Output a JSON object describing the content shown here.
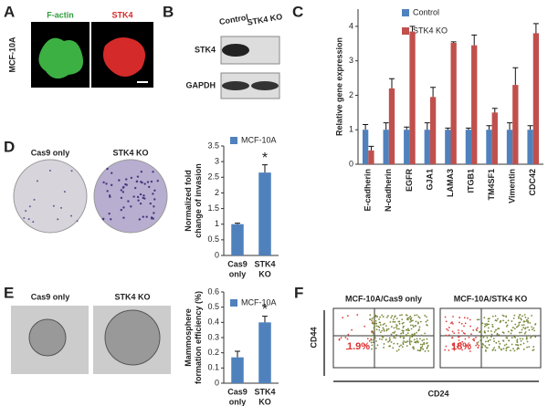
{
  "panels": {
    "letters": [
      "A",
      "B",
      "C",
      "D",
      "E",
      "F"
    ],
    "a": {
      "row_label": "MCF-10A",
      "stain1": "F-actin",
      "stain2": "STK4"
    },
    "b": {
      "col1": "Control",
      "col2": "STK4 KO",
      "row1": "STK4",
      "row2": "GAPDH"
    },
    "d": {
      "img1": "Cas9 only",
      "img2": "STK4 KO"
    },
    "e": {
      "img1": "Cas9 only",
      "img2": "STK4 KO"
    },
    "f": {
      "title1": "MCF-10A/Cas9 only",
      "title2": "MCF-10A/STK4 KO",
      "pct1": "1.9%",
      "pct2": "18%",
      "ylabel": "CD44",
      "xlabel": "CD24"
    }
  },
  "chart_data": [
    {
      "type": "bar",
      "ylabel": [
        "Relative gene expression"
      ],
      "categories": [
        [
          "E-cadherin"
        ],
        [
          "N-cadherin"
        ],
        [
          "EGFR"
        ],
        [
          "GJA1"
        ],
        [
          "LAMA3"
        ],
        [
          "ITGB1"
        ],
        [
          "TM4SF1"
        ],
        [
          "Vimentin"
        ],
        [
          "CDC42"
        ]
      ],
      "series": [
        {
          "name": "Control",
          "color": "#4f81bd",
          "values": [
            1,
            1,
            1,
            1,
            1,
            1,
            1,
            1,
            1
          ],
          "errors": [
            0.15,
            0.2,
            0.08,
            0.2,
            0.05,
            0.05,
            0.12,
            0.2,
            0.12
          ]
        },
        {
          "name": "STK4 KO",
          "color": "#c0504d",
          "values": [
            0.4,
            2.2,
            3.85,
            1.95,
            3.52,
            3.45,
            1.5,
            2.3,
            3.8
          ],
          "errors": [
            0.12,
            0.28,
            0.15,
            0.28,
            0.03,
            0.3,
            0.12,
            0.5,
            0.28
          ]
        }
      ],
      "ylim": [
        0,
        4.5
      ],
      "yticks": [
        0,
        1,
        2,
        3,
        4
      ]
    },
    {
      "type": "bar",
      "ylabel": [
        "Normalized fold",
        "change of invasion"
      ],
      "categories": [
        [
          "Cas9",
          "only"
        ],
        [
          "STK4",
          "KO"
        ]
      ],
      "series": [
        {
          "name": "MCF-10A",
          "color": "#4f81bd",
          "values": [
            1,
            2.65
          ],
          "errors": [
            0.03,
            0.25
          ]
        }
      ],
      "annotation": "*",
      "ylim": [
        0,
        3.5
      ],
      "yticks": [
        0,
        0.5,
        1,
        1.5,
        2,
        2.5,
        3,
        3.5
      ]
    },
    {
      "type": "bar",
      "ylabel": [
        "Mammosphere",
        "formation efficiency (%)"
      ],
      "categories": [
        [
          "Cas9",
          "only"
        ],
        [
          "STK4",
          "KO"
        ]
      ],
      "series": [
        {
          "name": "MCF-10A",
          "color": "#4f81bd",
          "values": [
            0.17,
            0.4
          ],
          "errors": [
            0.04,
            0.04
          ]
        }
      ],
      "annotation": "*",
      "ylim": [
        0,
        0.6
      ],
      "yticks": [
        0,
        0.1,
        0.2,
        0.3,
        0.4,
        0.5,
        0.6
      ]
    }
  ]
}
